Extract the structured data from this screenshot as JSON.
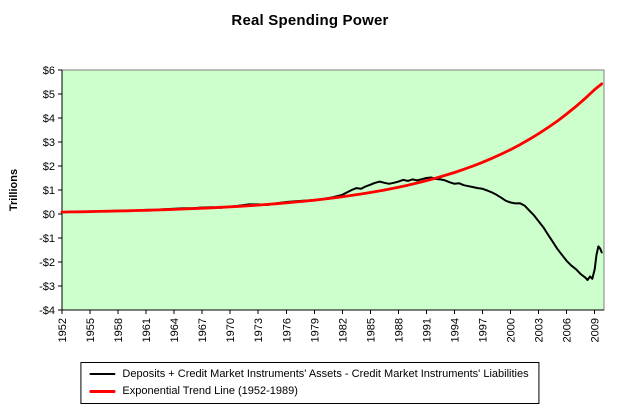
{
  "page": {
    "background": "#ffffff"
  },
  "chart_data": {
    "type": "line",
    "title": "Real Spending Power",
    "xlabel": "",
    "ylabel": "Trillions",
    "ylim": [
      -4,
      6
    ],
    "xlim": [
      1952,
      2010
    ],
    "grid": false,
    "legend_position": "bottom",
    "plot_bg": "#ccffcc",
    "axis_color": "#000000",
    "plot_border_color": "#808080",
    "x_ticks": [
      1952,
      1955,
      1958,
      1961,
      1964,
      1967,
      1970,
      1973,
      1976,
      1979,
      1982,
      1985,
      1988,
      1991,
      1994,
      1997,
      2000,
      2003,
      2006,
      2009
    ],
    "y_ticks": [
      {
        "value": 6,
        "label": "$6"
      },
      {
        "value": 5,
        "label": "$5"
      },
      {
        "value": 4,
        "label": "$4"
      },
      {
        "value": 3,
        "label": "$3"
      },
      {
        "value": 2,
        "label": "$2"
      },
      {
        "value": 1,
        "label": "$1"
      },
      {
        "value": 0,
        "label": "$0"
      },
      {
        "value": -1,
        "label": "-$1"
      },
      {
        "value": -2,
        "label": "-$2"
      },
      {
        "value": -3,
        "label": "-$3"
      },
      {
        "value": -4,
        "label": "-$4"
      }
    ],
    "series": [
      {
        "id": "deposits-credit-line",
        "name": "Deposits + Credit Market Instruments' Assets - Credit Market Instruments' Liabilities",
        "color": "#000000",
        "width": 2,
        "points": [
          [
            1952,
            0.08
          ],
          [
            1953,
            0.09
          ],
          [
            1954,
            0.1
          ],
          [
            1955,
            0.11
          ],
          [
            1956,
            0.11
          ],
          [
            1957,
            0.12
          ],
          [
            1958,
            0.14
          ],
          [
            1959,
            0.14
          ],
          [
            1960,
            0.15
          ],
          [
            1961,
            0.17
          ],
          [
            1962,
            0.18
          ],
          [
            1963,
            0.2
          ],
          [
            1964,
            0.22
          ],
          [
            1965,
            0.24
          ],
          [
            1966,
            0.24
          ],
          [
            1967,
            0.27
          ],
          [
            1968,
            0.28
          ],
          [
            1969,
            0.26
          ],
          [
            1970,
            0.3
          ],
          [
            1971,
            0.35
          ],
          [
            1972,
            0.4
          ],
          [
            1973,
            0.4
          ],
          [
            1974,
            0.38
          ],
          [
            1975,
            0.45
          ],
          [
            1976,
            0.5
          ],
          [
            1977,
            0.53
          ],
          [
            1978,
            0.56
          ],
          [
            1979,
            0.58
          ],
          [
            1980,
            0.63
          ],
          [
            1981,
            0.7
          ],
          [
            1982,
            0.8
          ],
          [
            1982.5,
            0.9
          ],
          [
            1983,
            1.0
          ],
          [
            1983.5,
            1.08
          ],
          [
            1984,
            1.05
          ],
          [
            1984.5,
            1.15
          ],
          [
            1985,
            1.22
          ],
          [
            1985.5,
            1.3
          ],
          [
            1986,
            1.35
          ],
          [
            1986.5,
            1.3
          ],
          [
            1987,
            1.26
          ],
          [
            1987.5,
            1.3
          ],
          [
            1988,
            1.35
          ],
          [
            1988.5,
            1.42
          ],
          [
            1989,
            1.38
          ],
          [
            1989.5,
            1.44
          ],
          [
            1990,
            1.4
          ],
          [
            1990.5,
            1.45
          ],
          [
            1991,
            1.5
          ],
          [
            1991.5,
            1.52
          ],
          [
            1992,
            1.46
          ],
          [
            1992.5,
            1.44
          ],
          [
            1993,
            1.4
          ],
          [
            1993.5,
            1.32
          ],
          [
            1994,
            1.26
          ],
          [
            1994.5,
            1.28
          ],
          [
            1995,
            1.2
          ],
          [
            1995.5,
            1.16
          ],
          [
            1996,
            1.12
          ],
          [
            1996.5,
            1.08
          ],
          [
            1997,
            1.05
          ],
          [
            1997.5,
            0.98
          ],
          [
            1998,
            0.9
          ],
          [
            1998.5,
            0.8
          ],
          [
            1999,
            0.68
          ],
          [
            1999.5,
            0.55
          ],
          [
            2000,
            0.48
          ],
          [
            2000.5,
            0.44
          ],
          [
            2001,
            0.45
          ],
          [
            2001.5,
            0.35
          ],
          [
            2002,
            0.15
          ],
          [
            2002.5,
            -0.05
          ],
          [
            2003,
            -0.3
          ],
          [
            2003.5,
            -0.55
          ],
          [
            2004,
            -0.85
          ],
          [
            2004.5,
            -1.15
          ],
          [
            2005,
            -1.45
          ],
          [
            2005.5,
            -1.7
          ],
          [
            2006,
            -1.95
          ],
          [
            2006.5,
            -2.15
          ],
          [
            2007,
            -2.3
          ],
          [
            2007.5,
            -2.5
          ],
          [
            2008,
            -2.65
          ],
          [
            2008.25,
            -2.75
          ],
          [
            2008.5,
            -2.6
          ],
          [
            2008.75,
            -2.7
          ],
          [
            2009,
            -2.3
          ],
          [
            2009.2,
            -1.7
          ],
          [
            2009.4,
            -1.35
          ],
          [
            2009.6,
            -1.45
          ],
          [
            2009.75,
            -1.6
          ]
        ]
      },
      {
        "id": "exponential-trend-line",
        "name": "Exponential Trend Line (1952-1989)",
        "color": "#ff0000",
        "width": 2.8,
        "points": [
          [
            1952,
            0.08
          ],
          [
            1953,
            0.086
          ],
          [
            1954,
            0.093
          ],
          [
            1955,
            0.1
          ],
          [
            1956,
            0.107
          ],
          [
            1957,
            0.115
          ],
          [
            1958,
            0.124
          ],
          [
            1959,
            0.134
          ],
          [
            1960,
            0.144
          ],
          [
            1961,
            0.155
          ],
          [
            1962,
            0.166
          ],
          [
            1963,
            0.179
          ],
          [
            1964,
            0.193
          ],
          [
            1965,
            0.207
          ],
          [
            1966,
            0.223
          ],
          [
            1967,
            0.24
          ],
          [
            1968,
            0.258
          ],
          [
            1969,
            0.278
          ],
          [
            1970,
            0.299
          ],
          [
            1971,
            0.321
          ],
          [
            1972,
            0.346
          ],
          [
            1973,
            0.372
          ],
          [
            1974,
            0.4
          ],
          [
            1975,
            0.431
          ],
          [
            1976,
            0.464
          ],
          [
            1977,
            0.499
          ],
          [
            1978,
            0.537
          ],
          [
            1979,
            0.577
          ],
          [
            1980,
            0.621
          ],
          [
            1981,
            0.668
          ],
          [
            1982,
            0.719
          ],
          [
            1983,
            0.774
          ],
          [
            1984,
            0.832
          ],
          [
            1985,
            0.896
          ],
          [
            1986,
            0.964
          ],
          [
            1987,
            1.037
          ],
          [
            1988,
            1.116
          ],
          [
            1989,
            1.2
          ],
          [
            1990,
            1.291
          ],
          [
            1991,
            1.39
          ],
          [
            1992,
            1.495
          ],
          [
            1993,
            1.609
          ],
          [
            1994,
            1.731
          ],
          [
            1995,
            1.862
          ],
          [
            1996,
            2.003
          ],
          [
            1997,
            2.156
          ],
          [
            1998,
            2.319
          ],
          [
            1999,
            2.495
          ],
          [
            2000,
            2.685
          ],
          [
            2001,
            2.889
          ],
          [
            2002,
            3.108
          ],
          [
            2003,
            3.344
          ],
          [
            2004,
            3.598
          ],
          [
            2005,
            3.871
          ],
          [
            2006,
            4.165
          ],
          [
            2007,
            4.482
          ],
          [
            2008,
            4.822
          ],
          [
            2009,
            5.188
          ],
          [
            2009.75,
            5.42
          ]
        ]
      }
    ]
  }
}
